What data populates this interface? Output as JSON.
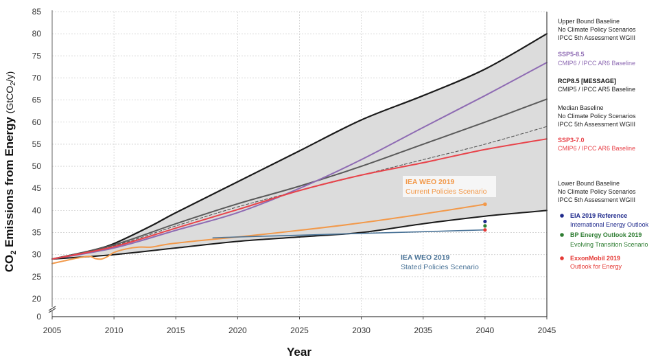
{
  "chart_data": {
    "type": "line",
    "xlabel": "Year",
    "ylabel": {
      "prefix": "CO",
      "sub": "2",
      "main": " Emissions from Energy ",
      "unit_prefix": "(GtCO",
      "unit_sub": "2",
      "unit_suffix": "/y)"
    },
    "xlim": [
      2005,
      2045
    ],
    "ylim": [
      20,
      85
    ],
    "axis_break": true,
    "x_ticks": [
      "2005",
      "2010",
      "2015",
      "2020",
      "2025",
      "2030",
      "2035",
      "2040",
      "2045"
    ],
    "y_ticks": [
      "0",
      "20",
      "25",
      "30",
      "35",
      "40",
      "45",
      "50",
      "55",
      "60",
      "65",
      "70",
      "75",
      "80",
      "85"
    ],
    "grid": true,
    "colors": {
      "band_fill": "#dcdcdc",
      "bounds": "#1a1a1a",
      "median": "#5a5a5a",
      "ssp585": "#8e6bb3",
      "ssp370": "#e8434a",
      "weo_current": "#f2994a",
      "weo_stated": "#4a7397",
      "eia": "#1f2a8c",
      "bp": "#2e7d32",
      "exxon": "#e53935"
    },
    "series": [
      {
        "key": "upper",
        "name": "Upper Bound Baseline",
        "style": "solid",
        "x": [
          2005,
          2008,
          2010,
          2013,
          2015,
          2020,
          2025,
          2030,
          2035,
          2040,
          2045
        ],
        "y": [
          29.0,
          30.8,
          32.5,
          36.5,
          39.5,
          46.5,
          53.5,
          60.5,
          66.0,
          72.0,
          80.0
        ]
      },
      {
        "key": "lower",
        "name": "Lower Bound Baseline",
        "style": "solid",
        "x": [
          2005,
          2010,
          2015,
          2020,
          2025,
          2030,
          2035,
          2040,
          2045
        ],
        "y": [
          29.0,
          30.0,
          31.5,
          33.0,
          34.0,
          35.0,
          37.0,
          38.7,
          40.0
        ]
      },
      {
        "key": "median",
        "name": "Median Baseline",
        "style": "solid",
        "x": [
          2005,
          2010,
          2015,
          2020,
          2025,
          2030,
          2035,
          2040,
          2045
        ],
        "y": [
          29.0,
          32.2,
          37.0,
          41.5,
          45.5,
          50.0,
          55.0,
          60.0,
          65.2
        ]
      },
      {
        "key": "ssp585",
        "name": "SSP5-8.5",
        "style": "solid",
        "x": [
          2005,
          2010,
          2015,
          2020,
          2025,
          2030,
          2035,
          2040,
          2045
        ],
        "y": [
          29.0,
          31.5,
          35.5,
          39.5,
          45.0,
          51.5,
          58.8,
          66.0,
          73.5
        ]
      },
      {
        "key": "rcp85",
        "name": "RCP8.5 [MESSAGE]",
        "style": "dashed",
        "x": [
          2005,
          2010,
          2015,
          2020,
          2025,
          2030,
          2035,
          2040,
          2045
        ],
        "y": [
          29.0,
          32.0,
          36.5,
          40.8,
          44.5,
          48.0,
          51.5,
          55.0,
          59.0
        ]
      },
      {
        "key": "ssp370",
        "name": "SSP3-7.0",
        "style": "solid",
        "x": [
          2005,
          2010,
          2015,
          2020,
          2025,
          2030,
          2035,
          2040,
          2045
        ],
        "y": [
          29.0,
          31.8,
          36.0,
          40.2,
          44.5,
          48.0,
          50.8,
          53.8,
          56.2
        ]
      },
      {
        "key": "weo_current",
        "name": "IEA WEO 2019 Current Policies Scenario",
        "style": "solid",
        "x": [
          2005,
          2006,
          2007,
          2008,
          2008.5,
          2009,
          2009.5,
          2010,
          2011,
          2012,
          2013,
          2014,
          2015,
          2017,
          2020,
          2025,
          2030,
          2035,
          2040
        ],
        "y": [
          28.0,
          28.6,
          29.2,
          29.6,
          29.1,
          29.0,
          29.6,
          30.5,
          31.3,
          31.7,
          31.7,
          32.2,
          32.6,
          33.2,
          34.0,
          35.5,
          37.2,
          39.2,
          41.4
        ]
      },
      {
        "key": "weo_stated",
        "name": "IEA WEO 2019 Stated Policies Scenario",
        "style": "solid",
        "x": [
          2018,
          2020,
          2025,
          2030,
          2035,
          2040
        ],
        "y": [
          33.8,
          34.0,
          34.4,
          34.8,
          35.2,
          35.6
        ]
      }
    ],
    "points": [
      {
        "key": "eia",
        "name": "EIA 2019 Reference",
        "x": 2040,
        "y": 37.5
      },
      {
        "key": "bp",
        "name": "BP Energy Outlook 2019",
        "x": 2040,
        "y": 36.5
      },
      {
        "key": "exxon",
        "name": "ExxonMobil 2019",
        "x": 2040,
        "y": 35.6
      },
      {
        "key": "weo_current_end",
        "name": "IEA WEO 2019 Current Policies Scenario",
        "x": 2040,
        "y": 41.4
      }
    ],
    "annotations": [
      {
        "key": "upper",
        "lines": [
          {
            "text": "Upper Bound Baseline",
            "color": "#222222",
            "bold": false
          },
          {
            "text": "No Climate Policy Scenarios",
            "color": "#222222",
            "bold": false
          },
          {
            "text": "IPCC 5th Assessment WGIII",
            "color": "#222222",
            "bold": false
          }
        ]
      },
      {
        "key": "ssp585",
        "lines": [
          {
            "text": "SSP5-8.5",
            "color": "#8e6bb3",
            "bold": true
          },
          {
            "text": "CMIP6 / IPCC AR6 Baseline",
            "color": "#8e6bb3",
            "bold": false
          }
        ]
      },
      {
        "key": "rcp85",
        "lines": [
          {
            "text": "RCP8.5 [MESSAGE]",
            "color": "#111111",
            "bold": true
          },
          {
            "text": "CMIP5 / IPCC AR5 Baseline",
            "color": "#222222",
            "bold": false
          }
        ]
      },
      {
        "key": "median",
        "lines": [
          {
            "text": "Median Baseline",
            "color": "#222222",
            "bold": false
          },
          {
            "text": "No Climate Policy Scenarios",
            "color": "#222222",
            "bold": false
          },
          {
            "text": "IPCC 5th Assessment WGIII",
            "color": "#222222",
            "bold": false
          }
        ]
      },
      {
        "key": "ssp370",
        "lines": [
          {
            "text": "SSP3-7.0",
            "color": "#e8434a",
            "bold": true
          },
          {
            "text": "CMIP6 / IPCC AR6 Baseline",
            "color": "#e8434a",
            "bold": false
          }
        ]
      },
      {
        "key": "lower",
        "lines": [
          {
            "text": "Lower Bound Baseline",
            "color": "#222222",
            "bold": false
          },
          {
            "text": "No Climate Policy Scenarios",
            "color": "#222222",
            "bold": false
          },
          {
            "text": "IPCC 5th Assessment WGIII",
            "color": "#222222",
            "bold": false
          }
        ]
      },
      {
        "key": "eia",
        "bullet": "#1f2a8c",
        "lines": [
          {
            "text": "EIA 2019 Reference",
            "color": "#1f2a8c",
            "bold": true
          },
          {
            "text": "International Energy Outlook",
            "color": "#1f2a8c",
            "bold": false
          }
        ]
      },
      {
        "key": "bp",
        "bullet": "#2e7d32",
        "lines": [
          {
            "text": "BP Energy Outlook 2019",
            "color": "#2e7d32",
            "bold": true
          },
          {
            "text": "Evolving Transition Scenario",
            "color": "#2e7d32",
            "bold": false
          }
        ]
      },
      {
        "key": "exxon",
        "bullet": "#e53935",
        "lines": [
          {
            "text": "ExxonMobil 2019",
            "color": "#e53935",
            "bold": true
          },
          {
            "text": "Outlook for Energy",
            "color": "#e53935",
            "bold": false
          }
        ]
      }
    ],
    "callouts": [
      {
        "key": "weo_current",
        "lines": [
          {
            "text": "IEA WEO 2019",
            "color": "#f2994a",
            "bold": true
          },
          {
            "text": "Current Policies Scenario",
            "color": "#f2994a",
            "bold": false
          }
        ]
      },
      {
        "key": "weo_stated",
        "lines": [
          {
            "text": "IEA WEO 2019",
            "color": "#4a7397",
            "bold": true
          },
          {
            "text": "Stated Policies Scenario",
            "color": "#4a7397",
            "bold": false
          }
        ]
      }
    ]
  }
}
